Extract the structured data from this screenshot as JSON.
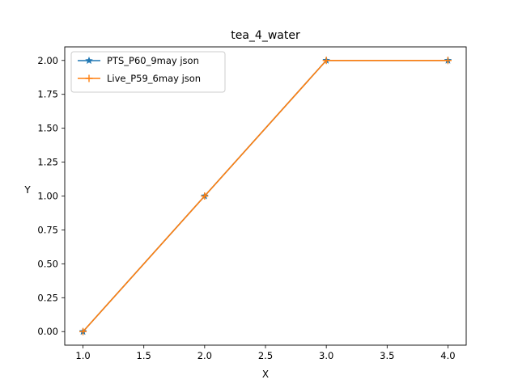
{
  "chart_data": {
    "type": "line",
    "title": "tea_4_water",
    "xlabel": "X",
    "ylabel": "Y",
    "xlim": [
      0.85,
      4.15
    ],
    "ylim": [
      -0.1,
      2.1
    ],
    "xticks": [
      1.0,
      1.5,
      2.0,
      2.5,
      3.0,
      3.5,
      4.0
    ],
    "xtick_labels": [
      "1.0",
      "1.5",
      "2.0",
      "2.5",
      "3.0",
      "3.5",
      "4.0"
    ],
    "yticks": [
      0.0,
      0.25,
      0.5,
      0.75,
      1.0,
      1.25,
      1.5,
      1.75,
      2.0
    ],
    "ytick_labels": [
      "0.00",
      "0.25",
      "0.50",
      "0.75",
      "1.00",
      "1.25",
      "1.50",
      "1.75",
      "2.00"
    ],
    "grid": false,
    "legend_position": "top-left",
    "series": [
      {
        "name": "PTS_P60_9may json",
        "color": "#1f77b4",
        "marker": "star",
        "x": [
          1,
          2,
          3,
          4
        ],
        "y": [
          0,
          1,
          2,
          2
        ]
      },
      {
        "name": "Live_P59_6may json",
        "color": "#ff7f0e",
        "marker": "plus",
        "x": [
          1,
          2,
          3,
          4
        ],
        "y": [
          0,
          1,
          2,
          2
        ]
      }
    ]
  }
}
